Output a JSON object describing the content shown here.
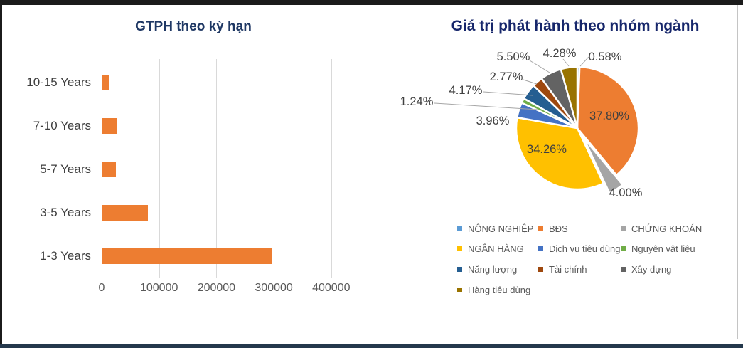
{
  "chart_data": [
    {
      "type": "bar",
      "title": "GTPH theo kỳ hạn",
      "orientation": "horizontal",
      "categories": [
        "10-15 Years",
        "7-10 Years",
        "5-7 Years",
        "3-5 Years",
        "1-3 Years"
      ],
      "values": [
        11000,
        25000,
        24000,
        79000,
        296000
      ],
      "bar_color": "#ED7D31",
      "xlim": [
        0,
        400000
      ],
      "x_ticks": [
        0,
        100000,
        200000,
        300000,
        400000
      ],
      "grid": true,
      "title_color": "#1F3864"
    },
    {
      "type": "pie",
      "title": "Giá trị phát hành theo nhóm ngành",
      "title_color": "#17276B",
      "legend_position": "bottom",
      "slices": [
        {
          "label": "NÔNG NGHIỆP",
          "value": 0.58,
          "pct_text": "0.58%",
          "color": "#5B9BD5"
        },
        {
          "label": "BĐS",
          "value": 37.8,
          "pct_text": "37.80%",
          "color": "#ED7D31"
        },
        {
          "label": "CHỨNG KHOÁN",
          "value": 4.0,
          "pct_text": "4.00%",
          "color": "#A5A5A5",
          "exploded": true
        },
        {
          "label": "NGÂN HÀNG",
          "value": 34.26,
          "pct_text": "34.26%",
          "color": "#FFC000"
        },
        {
          "label": "Dịch vụ tiêu dùng",
          "value": 3.96,
          "pct_text": "3.96%",
          "color": "#4472C4"
        },
        {
          "label": "Nguyên vật liệu",
          "value": 1.24,
          "pct_text": "1.24%",
          "color": "#70AD47"
        },
        {
          "label": "Năng lượng",
          "value": 4.17,
          "pct_text": "4.17%",
          "color": "#255E91"
        },
        {
          "label": "Tài chính",
          "value": 2.77,
          "pct_text": "2.77%",
          "color": "#9E480E"
        },
        {
          "label": "Xây dựng",
          "value": 5.5,
          "pct_text": "5.50%",
          "color": "#636363"
        },
        {
          "label": "Hàng tiêu dùng",
          "value": 4.28,
          "pct_text": "4.28%",
          "color": "#997300"
        }
      ]
    }
  ]
}
